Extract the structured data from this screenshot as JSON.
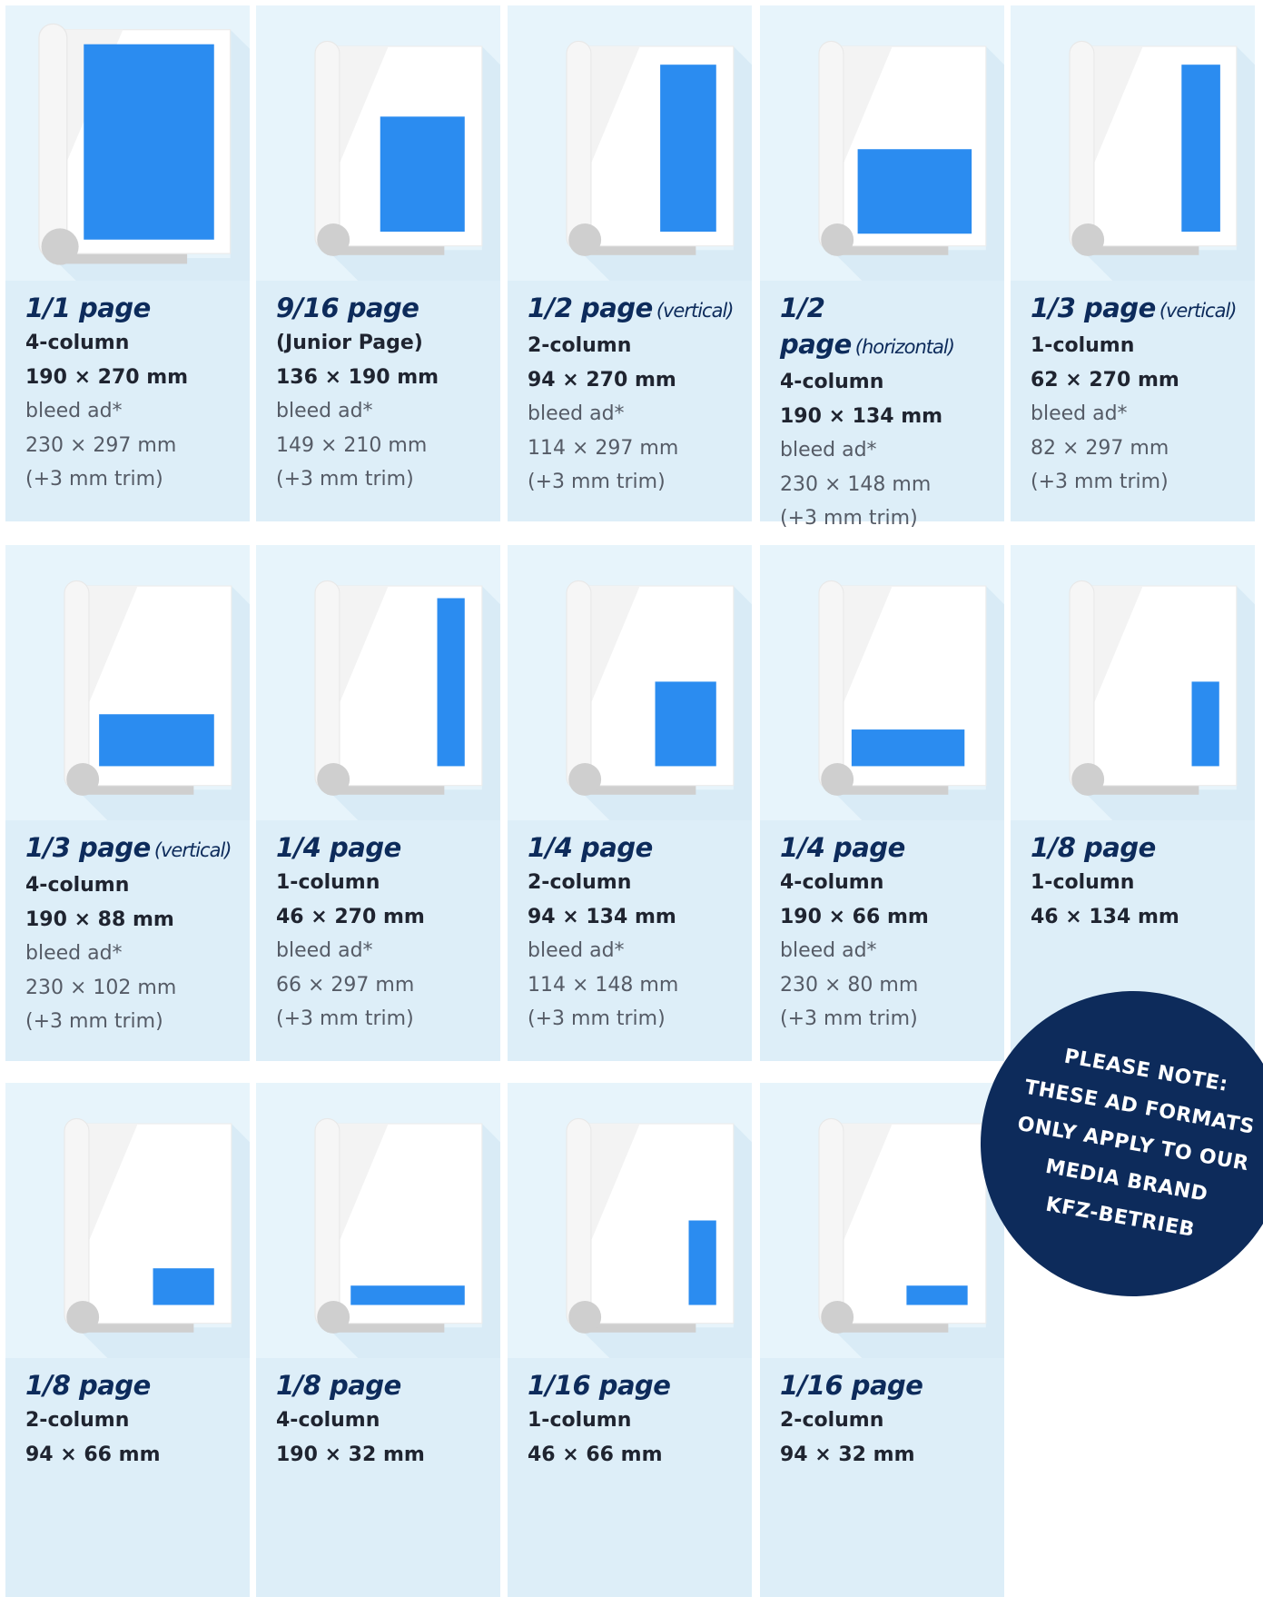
{
  "cards": [
    {
      "title": "1/1 page",
      "lines": [
        "4-column",
        "190 × 270 mm"
      ],
      "light": [
        "bleed ad*",
        "230 × 297 mm",
        "(+3 mm trim)"
      ]
    },
    {
      "title": "9/16 page",
      "lines": [
        "(Junior Page)",
        "136 × 190 mm"
      ],
      "light": [
        "bleed ad*",
        "149 × 210 mm",
        "(+3 mm trim)"
      ]
    },
    {
      "title": "1/2 page",
      "note": "(vertical)",
      "lines": [
        "2-column",
        "94 × 270 mm"
      ],
      "light": [
        "bleed ad*",
        "114 × 297 mm",
        "(+3 mm trim)"
      ]
    },
    {
      "title": "1/2 page",
      "note": "(horizontal)",
      "lines": [
        "4-column",
        "190 × 134 mm"
      ],
      "light": [
        "bleed ad*",
        "230 × 148 mm",
        "(+3 mm trim)"
      ]
    },
    {
      "title": "1/3 page",
      "note": "(vertical)",
      "lines": [
        "1-column",
        "62 × 270 mm"
      ],
      "light": [
        "bleed ad*",
        "82 × 297 mm",
        "(+3 mm trim)"
      ]
    },
    {
      "title": "1/3 page",
      "note": "(vertical)",
      "lines": [
        "4-column",
        "190 × 88 mm"
      ],
      "light": [
        "bleed ad*",
        "230 × 102 mm",
        "(+3 mm trim)"
      ]
    },
    {
      "title": "1/4 page",
      "lines": [
        "1-column",
        "46 × 270 mm"
      ],
      "light": [
        "bleed ad*",
        "66 × 297 mm",
        "(+3 mm trim)"
      ]
    },
    {
      "title": "1/4 page",
      "lines": [
        "2-column",
        "94 × 134 mm"
      ],
      "light": [
        "bleed ad*",
        "114 × 148 mm",
        "(+3 mm trim)"
      ]
    },
    {
      "title": "1/4 page",
      "lines": [
        "4-column",
        "190 × 66 mm"
      ],
      "light": [
        "bleed ad*",
        "230 × 80 mm",
        "(+3 mm trim)"
      ]
    },
    {
      "title": "1/8 page",
      "lines": [
        "1-column",
        "46 × 134 mm"
      ]
    },
    {
      "title": "1/8 page",
      "lines": [
        "2-column",
        "94 × 66 mm"
      ]
    },
    {
      "title": "1/8 page",
      "lines": [
        "4-column",
        "190 × 32 mm"
      ]
    },
    {
      "title": "1/16 page",
      "lines": [
        "1-column",
        "46 × 66 mm"
      ]
    },
    {
      "title": "1/16 page",
      "lines": [
        "2-column",
        "94 × 32 mm"
      ]
    }
  ],
  "notice": {
    "lines": [
      "PLEASE NOTE:",
      "THESE AD FORMATS",
      "ONLY APPLY TO OUR",
      "MEDIA BRAND",
      "KFZ-BETRIEB"
    ]
  }
}
